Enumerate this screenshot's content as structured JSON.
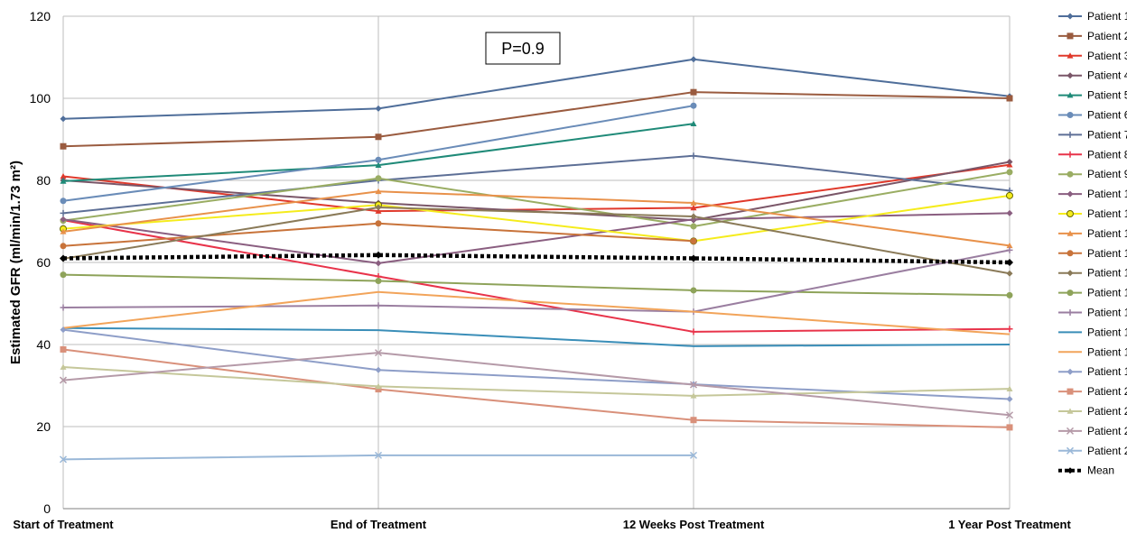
{
  "chart_data": {
    "type": "line",
    "ylabel": "Estimated GFR  (ml/min/1.73 m²)",
    "xlabel": "",
    "ylim": [
      0,
      120
    ],
    "yticks": [
      0,
      20,
      40,
      60,
      80,
      100,
      120
    ],
    "grid": true,
    "legend_position": "right",
    "annotation": "P=0.9",
    "categories": [
      "Start of Treatment",
      "End of Treatment",
      "12 Weeks Post Treatment",
      "1 Year Post Treatment"
    ],
    "series": [
      {
        "name": "Patient 1",
        "color": "#4f6e9a",
        "marker": "diamond",
        "values": [
          95,
          97.5,
          109.5,
          100.5
        ]
      },
      {
        "name": "Patient 2",
        "color": "#9a5b3f",
        "marker": "square",
        "values": [
          88.3,
          90.6,
          101.5,
          100
        ]
      },
      {
        "name": "Patient 3",
        "color": "#e0392b",
        "marker": "triangle",
        "values": [
          81,
          72.5,
          73.3,
          83.8
        ]
      },
      {
        "name": "Patient 4",
        "color": "#7a5668",
        "marker": "diamond",
        "values": [
          80,
          74.5,
          70.3,
          84.5
        ]
      },
      {
        "name": "Patient 5",
        "color": "#1f8a78",
        "marker": "triangle",
        "values": [
          79.8,
          83.7,
          93.8,
          null
        ]
      },
      {
        "name": "Patient 6",
        "color": "#6a8cb8",
        "marker": "circle",
        "values": [
          75,
          85,
          98.2,
          null
        ]
      },
      {
        "name": "Patient 7",
        "color": "#5d6f96",
        "marker": "plus",
        "values": [
          72,
          80,
          86,
          77.5
        ]
      },
      {
        "name": "Patient 8",
        "color": "#e8334a",
        "marker": "plus",
        "values": [
          70.3,
          56.6,
          43.1,
          43.8
        ]
      },
      {
        "name": "Patient 9",
        "color": "#9aad63",
        "marker": "circle",
        "values": [
          70.2,
          80.5,
          68.8,
          82
        ]
      },
      {
        "name": "Patient 1",
        "color": "#8a5e80",
        "marker": "diamond",
        "values": [
          70.5,
          59.8,
          70.5,
          72
        ]
      },
      {
        "name": "Patient 1",
        "color": "#f5ec1c",
        "marker": "circle-open",
        "values": [
          68.2,
          74,
          65.2,
          76.3
        ]
      },
      {
        "name": "Patient 1",
        "color": "#e8914a",
        "marker": "triangle",
        "values": [
          67.5,
          77.3,
          74.5,
          64.1
        ]
      },
      {
        "name": "Patient 1",
        "color": "#c8733a",
        "marker": "circle",
        "values": [
          64,
          69.5,
          65.2,
          null
        ]
      },
      {
        "name": "Patient 1",
        "color": "#8a7a58",
        "marker": "diamond",
        "values": [
          60.9,
          73.4,
          71.2,
          57.3
        ]
      },
      {
        "name": "Patient 1",
        "color": "#8ea35a",
        "marker": "circle",
        "values": [
          57,
          55.5,
          53.2,
          52
        ]
      },
      {
        "name": "Patient 1",
        "color": "#9a7ea0",
        "marker": "plus",
        "values": [
          49,
          49.5,
          48,
          63
        ]
      },
      {
        "name": "Patient 1",
        "color": "#3a8eb8",
        "marker": "none",
        "values": [
          44,
          43.5,
          39.6,
          40
        ]
      },
      {
        "name": "Patient 1",
        "color": "#f2a45a",
        "marker": "none",
        "values": [
          44,
          52.8,
          48,
          42.5
        ]
      },
      {
        "name": "Patient 1",
        "color": "#8e9ec8",
        "marker": "diamond",
        "values": [
          43.6,
          33.8,
          30.3,
          26.7
        ]
      },
      {
        "name": "Patient 2",
        "color": "#d9907a",
        "marker": "square",
        "values": [
          38.8,
          29.1,
          21.6,
          19.8
        ]
      },
      {
        "name": "Patient 2",
        "color": "#c5c79a",
        "marker": "triangle",
        "values": [
          34.5,
          29.8,
          27.5,
          29.2
        ]
      },
      {
        "name": "Patient 2",
        "color": "#b59aa8",
        "marker": "x",
        "values": [
          31.3,
          38,
          30.2,
          22.8
        ]
      },
      {
        "name": "Patient 2",
        "color": "#9ab8d8",
        "marker": "x",
        "values": [
          12,
          13,
          13,
          null
        ]
      },
      {
        "name": "Mean",
        "color": "#000000",
        "marker": "diamond",
        "dashed": true,
        "values": [
          61,
          61.8,
          61,
          60
        ]
      }
    ]
  }
}
